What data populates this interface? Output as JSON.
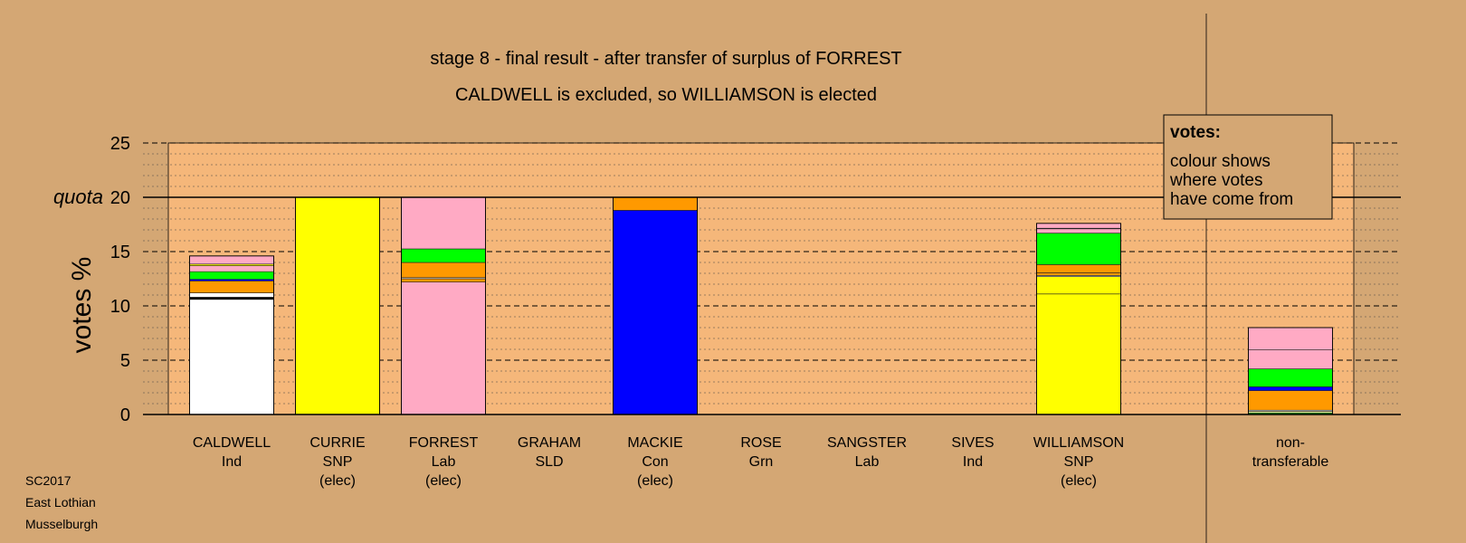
{
  "chart_data": {
    "type": "bar",
    "stacked": true,
    "title": "stage 8 - final result - after transfer of surplus of FORREST",
    "subtitle": "CALDWELL is excluded, so WILLIAMSON is elected",
    "ylabel": "votes %",
    "quota_label": "quota",
    "quota": 20,
    "ylim": [
      0,
      25
    ],
    "yticks": [
      "0",
      "5",
      "10",
      "15",
      "20",
      "25"
    ],
    "grid": true,
    "legend": {
      "title": "votes:",
      "lines": [
        "colour shows",
        "where votes",
        "have come from"
      ],
      "placement": "top-right"
    },
    "categories": [
      {
        "name": "CALDWELL",
        "party": "Ind",
        "note": "",
        "segments": [
          {
            "color": "#ffffff",
            "value": 10.6
          },
          {
            "color": "#000000",
            "value": 0.2
          },
          {
            "color": "#ffffff",
            "value": 0.4
          },
          {
            "color": "#ff9900",
            "value": 1.1
          },
          {
            "color": "#0000ff",
            "value": 0.15
          },
          {
            "color": "#00ff00",
            "value": 0.7
          },
          {
            "color": "#ffaac4",
            "value": 0.55
          },
          {
            "color": "#ffff00",
            "value": 0.15
          },
          {
            "color": "#ffaac4",
            "value": 0.75
          }
        ]
      },
      {
        "name": "CURRIE",
        "party": "SNP",
        "note": "(elec)",
        "segments": [
          {
            "color": "#ffff00",
            "value": 20.0
          }
        ]
      },
      {
        "name": "FORREST",
        "party": "Lab",
        "note": "(elec)",
        "segments": [
          {
            "color": "#ffaac4",
            "value": 12.2
          },
          {
            "color": "#ff9900",
            "value": 0.3
          },
          {
            "color": "#ffffff",
            "value": 0.1
          },
          {
            "color": "#ff9900",
            "value": 1.4
          },
          {
            "color": "#00ff00",
            "value": 1.25
          },
          {
            "color": "#ffaac4",
            "value": 4.75
          }
        ]
      },
      {
        "name": "GRAHAM",
        "party": "SLD",
        "note": "",
        "segments": []
      },
      {
        "name": "MACKIE",
        "party": "Con",
        "note": "(elec)",
        "segments": [
          {
            "color": "#0000ff",
            "value": 18.8
          },
          {
            "color": "#ff9900",
            "value": 1.2
          }
        ]
      },
      {
        "name": "ROSE",
        "party": "Grn",
        "note": "",
        "segments": []
      },
      {
        "name": "SANGSTER",
        "party": "Lab",
        "note": "",
        "segments": []
      },
      {
        "name": "SIVES",
        "party": "Ind",
        "note": "",
        "segments": []
      },
      {
        "name": "WILLIAMSON",
        "party": "SNP",
        "note": "(elec)",
        "segments": [
          {
            "color": "#ffff00",
            "value": 11.1
          },
          {
            "color": "#ffff00",
            "value": 1.6
          },
          {
            "color": "#ffffff",
            "value": 0.1
          },
          {
            "color": "#ff9900",
            "value": 0.25
          },
          {
            "color": "#ff9900",
            "value": 0.75
          },
          {
            "color": "#00ff00",
            "value": 2.9
          },
          {
            "color": "#ffaac4",
            "value": 0.4
          },
          {
            "color": "#ffffff",
            "value": 0.05
          },
          {
            "color": "#ffaac4",
            "value": 0.45
          }
        ]
      },
      {
        "name": "non-",
        "party": "transferable",
        "note": "",
        "segments": [
          {
            "color": "#00aa00",
            "value": 0.15
          },
          {
            "color": "#ffffaa",
            "value": 0.15
          },
          {
            "color": "#ffffff",
            "value": 0.1
          },
          {
            "color": "#ff9900",
            "value": 1.8
          },
          {
            "color": "#0000ff",
            "value": 0.35
          },
          {
            "color": "#00ff00",
            "value": 1.65
          },
          {
            "color": "#ffaac4",
            "value": 1.75
          },
          {
            "color": "#ffaac4",
            "value": 2.05
          }
        ]
      }
    ]
  },
  "footer": {
    "line1": "SC2017",
    "line2": "East Lothian",
    "line3": "Musselburgh"
  }
}
